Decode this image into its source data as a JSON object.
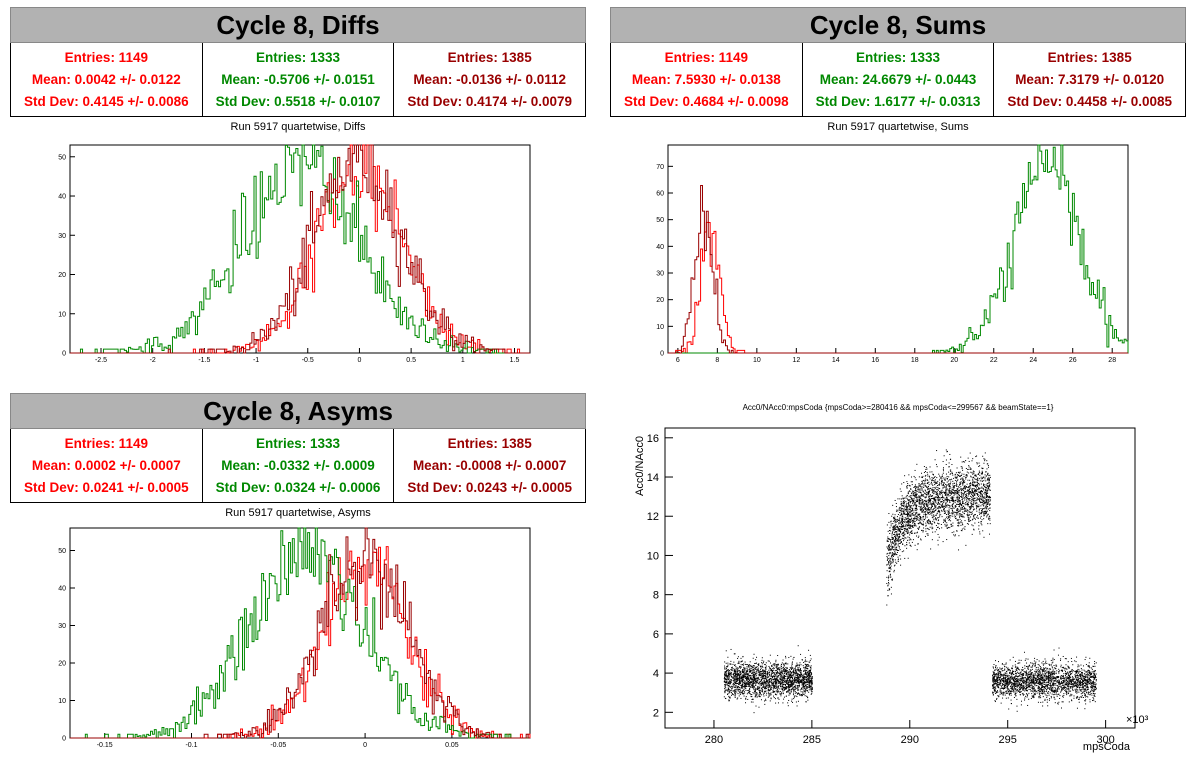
{
  "colors": {
    "red": "#ff0000",
    "green": "#008800",
    "darkred": "#990000",
    "titlebg": "#b2b2b2"
  },
  "panels": {
    "diffs": {
      "title": "Cycle 8, Diffs",
      "subtitle": "Run 5917 quartetwise, Diffs",
      "stats": [
        {
          "entries": "Entries: 1149",
          "mean": "Mean: 0.0042 +/- 0.0122",
          "std": "Std Dev: 0.4145 +/- 0.0086"
        },
        {
          "entries": "Entries: 1333",
          "mean": "Mean: -0.5706 +/- 0.0151",
          "std": "Std Dev: 0.5518 +/- 0.0107"
        },
        {
          "entries": "Entries: 1385",
          "mean": "Mean: -0.0136 +/- 0.0112",
          "std": "Std Dev: 0.4174 +/- 0.0079"
        }
      ]
    },
    "sums": {
      "title": "Cycle 8, Sums",
      "subtitle": "Run 5917 quartetwise, Sums",
      "stats": [
        {
          "entries": "Entries: 1149",
          "mean": "Mean: 7.5930 +/- 0.0138",
          "std": "Std Dev: 0.4684 +/- 0.0098"
        },
        {
          "entries": "Entries: 1333",
          "mean": "Mean: 24.6679 +/- 0.0443",
          "std": "Std Dev: 1.6177 +/- 0.0313"
        },
        {
          "entries": "Entries: 1385",
          "mean": "Mean: 7.3179 +/- 0.0120",
          "std": "Std Dev: 0.4458 +/- 0.0085"
        }
      ]
    },
    "asyms": {
      "title": "Cycle 8, Asyms",
      "subtitle": "Run 5917 quartetwise, Asyms",
      "stats": [
        {
          "entries": "Entries: 1149",
          "mean": "Mean: 0.0002 +/- 0.0007",
          "std": "Std Dev: 0.0241 +/- 0.0005"
        },
        {
          "entries": "Entries: 1333",
          "mean": "Mean: -0.0332 +/- 0.0009",
          "std": "Std Dev: 0.0324 +/- 0.0006"
        },
        {
          "entries": "Entries: 1385",
          "mean": "Mean: -0.0008 +/- 0.0007",
          "std": "Std Dev: 0.0243 +/- 0.0005"
        }
      ]
    },
    "scatter": {
      "title": "Acc0/NAcc0:mpsCoda {mpsCoda>=280416 && mpsCoda<=299567 && beamState==1}"
    }
  },
  "chart_data": [
    {
      "type": "line",
      "xlim": [
        -2.8,
        1.65
      ],
      "ylim": [
        0,
        53
      ],
      "xticks": [
        -2.5,
        -2,
        -1.5,
        -1,
        -0.5,
        0,
        0.5,
        1,
        1.5
      ],
      "yticks": [
        0,
        10,
        20,
        30,
        40,
        50
      ],
      "series": [
        {
          "color": "#ff0000",
          "mean": 0.0042,
          "std": 0.4145,
          "peak": 48
        },
        {
          "color": "#008800",
          "mean": -0.5706,
          "std": 0.5518,
          "peak": 49
        },
        {
          "color": "#990000",
          "mean": -0.0136,
          "std": 0.4174,
          "peak": 50
        }
      ]
    },
    {
      "type": "line",
      "xlim": [
        5.5,
        28.8
      ],
      "ylim": [
        0,
        78
      ],
      "xticks": [
        6,
        8,
        10,
        12,
        14,
        16,
        18,
        20,
        22,
        24,
        26,
        28
      ],
      "yticks": [
        0,
        10,
        20,
        30,
        40,
        50,
        60,
        70
      ],
      "series": [
        {
          "color": "#ff0000",
          "mean": 7.593,
          "std": 0.4684,
          "peak": 46
        },
        {
          "color": "#008800",
          "mean": 24.6679,
          "std": 1.6177,
          "peak": 72
        },
        {
          "color": "#990000",
          "mean": 7.3179,
          "std": 0.4458,
          "peak": 55
        }
      ]
    },
    {
      "type": "line",
      "xlim": [
        -0.17,
        0.095
      ],
      "ylim": [
        0,
        56
      ],
      "xticks": [
        -0.15,
        -0.1,
        -0.05,
        0,
        0.05
      ],
      "yticks": [
        0,
        10,
        20,
        30,
        40,
        50
      ],
      "series": [
        {
          "color": "#ff0000",
          "mean": 0.0002,
          "std": 0.0241,
          "peak": 46
        },
        {
          "color": "#008800",
          "mean": -0.0332,
          "std": 0.0324,
          "peak": 50
        },
        {
          "color": "#990000",
          "mean": -0.0008,
          "std": 0.0243,
          "peak": 50
        }
      ]
    },
    {
      "type": "scatter",
      "xlabel": "mpsCoda",
      "ylabel": "Acc0/NAcc0",
      "x_multiplier": "×10³",
      "xlim": [
        277.5,
        301.5
      ],
      "ylim": [
        1.2,
        16.5
      ],
      "xticks": [
        280,
        285,
        290,
        295,
        300
      ],
      "yticks": [
        2,
        4,
        6,
        8,
        10,
        12,
        14,
        16
      ],
      "clusters": [
        {
          "x": [
            280.5,
            285.0
          ],
          "y_center": 3.7,
          "y_spread": 0.45
        },
        {
          "x": [
            288.8,
            294.1
          ],
          "y_center": 12.5,
          "y_spread": 0.8
        },
        {
          "x": [
            294.2,
            299.5
          ],
          "y_center": 3.6,
          "y_spread": 0.45
        }
      ]
    }
  ]
}
